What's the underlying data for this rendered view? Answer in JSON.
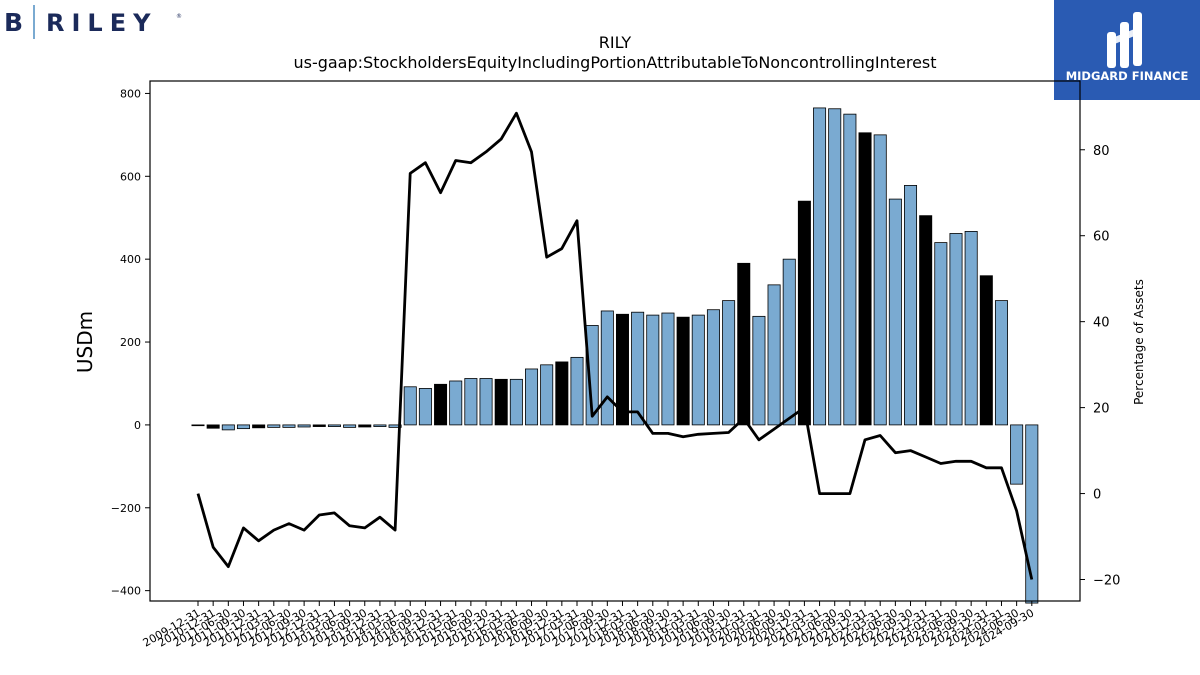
{
  "logos": {
    "left_text": "B RILEY",
    "right_text": "MIDGARD FINANCE"
  },
  "colors": {
    "bar_light": "#7aaad1",
    "bar_dark": "#000000",
    "line": "#000000",
    "logo_bg": "#2a5bb3"
  },
  "chart_data": {
    "type": "bar",
    "title": "RILY",
    "subtitle": "us-gaap:StockholdersEquityIncludingPortionAttributableToNoncontrollingInterest",
    "ylabel": "USDm",
    "y2label": "Percentage of Assets",
    "ylim": [
      -425,
      830
    ],
    "y2lim": [
      -25,
      96
    ],
    "yticks": [
      -400,
      -200,
      0,
      200,
      400,
      600,
      800
    ],
    "y2ticks": [
      -20,
      0,
      20,
      40,
      60,
      80
    ],
    "categories": [
      "2009-12-31",
      "2010-12-31",
      "2011-06-30",
      "2011-09-30",
      "2011-12-31",
      "2012-03-31",
      "2012-06-30",
      "2012-09-30",
      "2012-12-31",
      "2013-03-31",
      "2013-06-30",
      "2013-09-30",
      "2013-12-31",
      "2014-03-31",
      "2014-06-30",
      "2014-09-30",
      "2014-12-31",
      "2015-03-31",
      "2015-06-30",
      "2015-09-30",
      "2015-12-31",
      "2016-03-31",
      "2016-06-30",
      "2016-09-30",
      "2016-12-31",
      "2017-03-31",
      "2017-06-30",
      "2017-09-30",
      "2017-12-31",
      "2018-03-31",
      "2018-06-30",
      "2018-09-30",
      "2018-12-31",
      "2019-03-31",
      "2019-06-30",
      "2019-09-30",
      "2019-12-31",
      "2020-03-31",
      "2020-06-30",
      "2020-09-30",
      "2020-12-31",
      "2021-03-31",
      "2021-06-30",
      "2021-09-30",
      "2021-12-31",
      "2022-03-31",
      "2022-06-30",
      "2022-09-30",
      "2022-12-31",
      "2023-03-31",
      "2023-06-30",
      "2023-09-30",
      "2023-12-31",
      "2024-03-31",
      "2024-06-30",
      "2024-09-30"
    ],
    "series": [
      {
        "kind": "bar",
        "values": [
          -1,
          -8,
          -12,
          -9,
          -7,
          -6,
          -6,
          -5,
          -4,
          -4,
          -6,
          -5,
          -4,
          -6,
          92,
          88,
          98,
          106,
          112,
          112,
          110,
          110,
          135,
          145,
          152,
          163,
          240,
          275,
          267,
          272,
          265,
          270,
          260,
          265,
          278,
          300,
          390,
          262,
          338,
          400,
          540,
          765,
          763,
          750,
          705,
          700,
          545,
          578,
          505,
          440,
          462,
          467,
          360,
          300,
          -143,
          -430
        ],
        "dark": [
          false,
          true,
          false,
          false,
          true,
          false,
          false,
          false,
          true,
          false,
          false,
          true,
          false,
          false,
          false,
          false,
          true,
          false,
          false,
          false,
          true,
          false,
          false,
          false,
          true,
          false,
          false,
          false,
          true,
          false,
          false,
          false,
          true,
          false,
          false,
          false,
          true,
          false,
          false,
          false,
          true,
          false,
          false,
          false,
          true,
          false,
          false,
          false,
          true,
          false,
          false,
          false,
          true,
          false,
          false,
          false
        ]
      },
      {
        "kind": "line",
        "axis": "right",
        "values": [
          0,
          -12.5,
          -17,
          -8,
          -11,
          -8.5,
          -7,
          -8.5,
          -5,
          -4.5,
          -7.5,
          -8,
          -5.5,
          -8.5,
          74.5,
          77,
          70,
          77.5,
          77,
          79.5,
          82.5,
          88.5,
          79.5,
          55,
          57,
          63.5,
          18,
          22.5,
          19,
          19,
          14,
          14,
          13.2,
          13.8,
          14,
          14.2,
          17.5,
          12.5,
          15,
          17.5,
          20,
          0,
          0,
          0,
          12.5,
          13.5,
          9.5,
          10,
          8.5,
          7,
          7.5,
          7.5,
          6,
          6,
          -4,
          -20
        ]
      }
    ]
  }
}
